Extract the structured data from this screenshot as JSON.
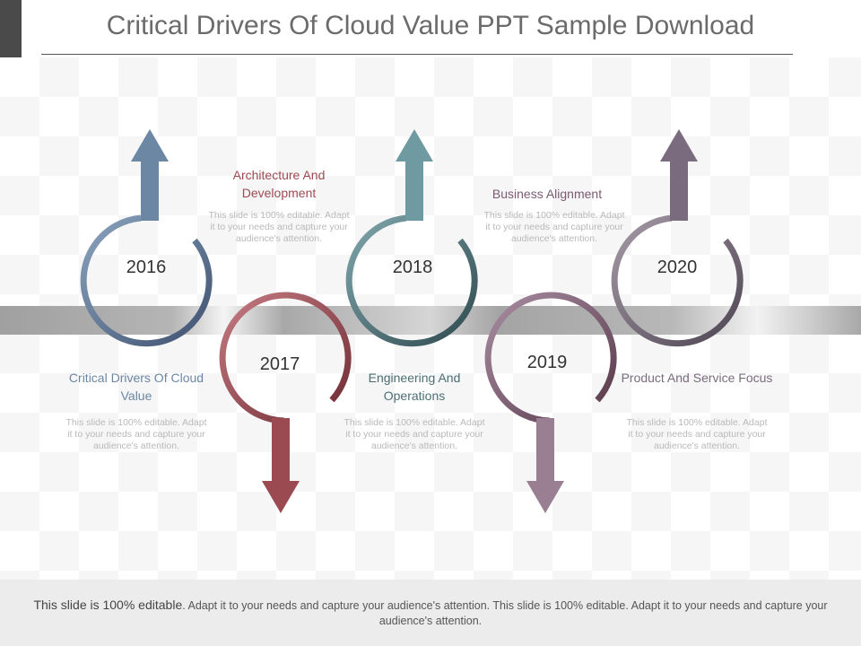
{
  "title": "Critical Drivers Of Cloud Value PPT Sample Download",
  "colors": {
    "c2016": "#6b87a3",
    "c2017": "#9c4a52",
    "c2018": "#4a6e74",
    "c2019": "#7d5a72",
    "c2020": "#7a6c7e",
    "band": "#a8a8a8"
  },
  "milestones": [
    {
      "year": "2016",
      "heading": "Critical Drivers Of Cloud Value",
      "description": "This slide is 100% editable. Adapt it to your needs and capture your audience's attention."
    },
    {
      "year": "2017",
      "heading": "Architecture And Development",
      "description": "This slide is 100% editable. Adapt it to your needs and capture your audience's attention."
    },
    {
      "year": "2018",
      "heading": "Engineering And Operations",
      "description": "This slide is 100% editable. Adapt it to your needs and capture your audience's attention."
    },
    {
      "year": "2019",
      "heading": "Business Alignment",
      "description": "This slide is 100% editable. Adapt it to your needs and capture your audience's attention."
    },
    {
      "year": "2020",
      "heading": "Product And Service Focus",
      "description": "This slide is 100% editable. Adapt it to your needs and capture your audience's attention."
    }
  ],
  "footer": {
    "lead": "This slide is 100% editable",
    "rest": ". Adapt it to your needs and capture your audience's attention. This slide is 100% editable. Adapt it to your needs and capture your audience's attention."
  }
}
